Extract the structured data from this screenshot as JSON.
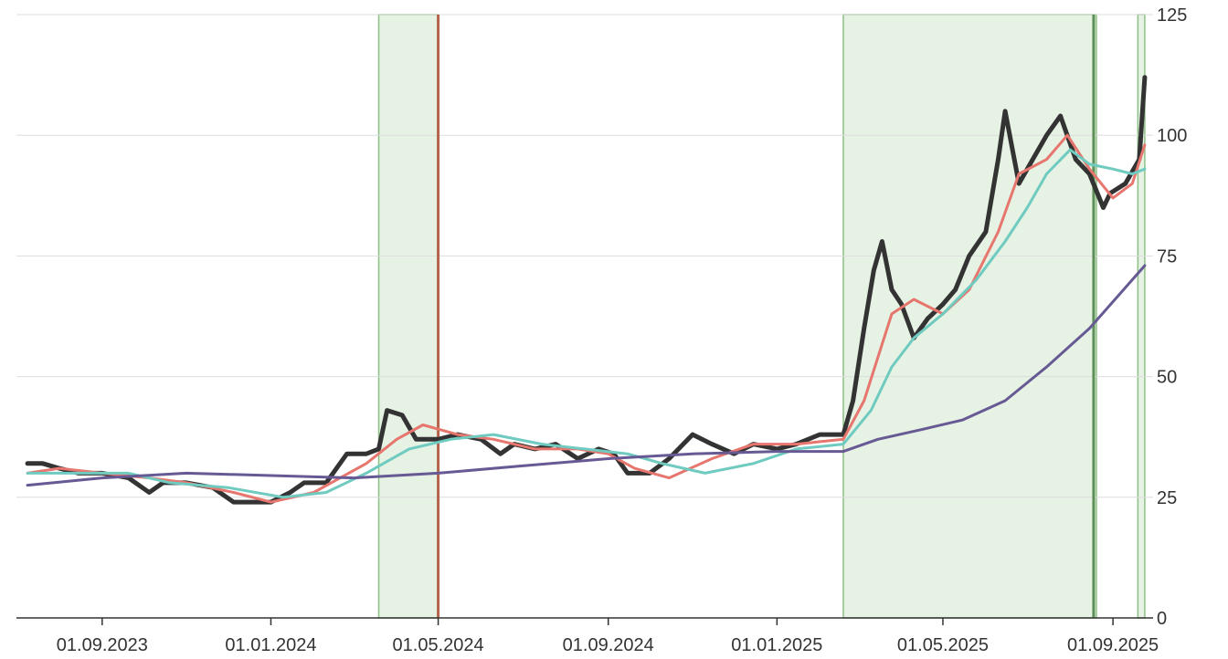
{
  "chart_data": {
    "type": "line",
    "title": "",
    "xlabel": "",
    "ylabel": "",
    "ylim": [
      0,
      125
    ],
    "xlim": [
      "2023-07-01",
      "2025-09-30"
    ],
    "grid": "horizontal",
    "y_axis_side": "right",
    "y_ticks": [
      0,
      25,
      50,
      75,
      100,
      125
    ],
    "x_ticks": [
      {
        "date": "2023-09-01",
        "label": "01.09.2023"
      },
      {
        "date": "2024-01-01",
        "label": "01.01.2024"
      },
      {
        "date": "2024-05-01",
        "label": "01.05.2024"
      },
      {
        "date": "2024-09-01",
        "label": "01.09.2024"
      },
      {
        "date": "2025-01-01",
        "label": "01.01.2025"
      },
      {
        "date": "2025-05-01",
        "label": "01.05.2025"
      },
      {
        "date": "2025-09-01",
        "label": "01.09.2025"
      }
    ],
    "shaded_regions": [
      {
        "start": "2024-03-19",
        "end": "2024-05-01",
        "color": "#e6f2e4",
        "border": "#8cc084"
      },
      {
        "start": "2025-02-18",
        "end": "2025-08-20",
        "color": "#e6f2e4",
        "border": "#8cc084"
      },
      {
        "start": "2025-09-19",
        "end": "2025-09-24",
        "color": "#e6f2e4",
        "border": "#8cc084"
      }
    ],
    "vertical_lines": [
      {
        "date": "2024-05-01",
        "color": "#b5624a"
      },
      {
        "date": "2025-08-18",
        "color": "#5e8f58"
      }
    ],
    "series": [
      {
        "color": "#333333",
        "width": 5,
        "x": [
          "2023-07-09",
          "2023-07-20",
          "2023-08-01",
          "2023-08-15",
          "2023-09-01",
          "2023-09-20",
          "2023-10-05",
          "2023-10-15",
          "2023-11-01",
          "2023-11-20",
          "2023-12-05",
          "2023-12-15",
          "2024-01-01",
          "2024-01-15",
          "2024-01-25",
          "2024-02-10",
          "2024-02-25",
          "2024-03-10",
          "2024-03-19",
          "2024-03-25",
          "2024-04-05",
          "2024-04-15",
          "2024-05-01",
          "2024-05-15",
          "2024-06-01",
          "2024-06-15",
          "2024-06-25",
          "2024-07-10",
          "2024-07-25",
          "2024-08-10",
          "2024-08-25",
          "2024-09-05",
          "2024-09-15",
          "2024-10-01",
          "2024-10-15",
          "2024-11-01",
          "2024-11-15",
          "2024-12-01",
          "2024-12-15",
          "2025-01-01",
          "2025-01-15",
          "2025-02-01",
          "2025-02-18",
          "2025-02-25",
          "2025-03-05",
          "2025-03-12",
          "2025-03-18",
          "2025-03-25",
          "2025-04-01",
          "2025-04-10",
          "2025-04-20",
          "2025-05-01",
          "2025-05-10",
          "2025-05-20",
          "2025-06-01",
          "2025-06-10",
          "2025-06-15",
          "2025-06-25",
          "2025-07-05",
          "2025-07-15",
          "2025-07-25",
          "2025-08-05",
          "2025-08-15",
          "2025-08-25",
          "2025-08-30",
          "2025-09-10",
          "2025-09-20",
          "2025-09-24"
        ],
        "values": [
          32,
          32,
          31,
          30,
          30,
          29,
          26,
          28,
          28,
          27,
          24,
          24,
          24,
          26,
          28,
          28,
          34,
          34,
          35,
          43,
          42,
          37,
          37,
          38,
          37,
          34,
          36,
          35,
          36,
          33,
          35,
          34,
          30,
          30,
          33,
          38,
          36,
          34,
          36,
          35,
          36,
          38,
          38,
          45,
          60,
          72,
          78,
          68,
          65,
          58,
          62,
          65,
          68,
          75,
          80,
          95,
          105,
          90,
          95,
          100,
          104,
          95,
          92,
          85,
          88,
          90,
          95,
          112
        ]
      },
      {
        "color": "#e6766e",
        "width": 3,
        "x": [
          "2023-07-09",
          "2023-08-01",
          "2023-09-01",
          "2023-10-05",
          "2023-11-01",
          "2023-12-05",
          "2024-01-01",
          "2024-02-01",
          "2024-03-10",
          "2024-04-01",
          "2024-04-20",
          "2024-05-15",
          "2024-06-10",
          "2024-07-10",
          "2024-08-10",
          "2024-09-01",
          "2024-09-20",
          "2024-10-15",
          "2024-11-15",
          "2024-12-15",
          "2025-01-15",
          "2025-02-18",
          "2025-03-05",
          "2025-03-25",
          "2025-04-10",
          "2025-05-01",
          "2025-05-20",
          "2025-06-10",
          "2025-06-25",
          "2025-07-15",
          "2025-07-30",
          "2025-08-15",
          "2025-09-01",
          "2025-09-15",
          "2025-09-24"
        ],
        "values": [
          30,
          31,
          30,
          29,
          28,
          26,
          24,
          26,
          32,
          37,
          40,
          38,
          37,
          35,
          35,
          34,
          31,
          29,
          33,
          36,
          36,
          37,
          45,
          63,
          66,
          63,
          68,
          80,
          92,
          95,
          100,
          93,
          87,
          90,
          98
        ]
      },
      {
        "color": "#6fcac0",
        "width": 3,
        "x": [
          "2023-07-09",
          "2023-08-15",
          "2023-09-20",
          "2023-10-20",
          "2023-12-01",
          "2024-01-10",
          "2024-02-10",
          "2024-03-10",
          "2024-04-10",
          "2024-05-10",
          "2024-06-10",
          "2024-07-15",
          "2024-08-15",
          "2024-09-15",
          "2024-10-10",
          "2024-11-10",
          "2024-12-15",
          "2025-01-15",
          "2025-02-18",
          "2025-03-10",
          "2025-03-25",
          "2025-04-10",
          "2025-05-01",
          "2025-05-25",
          "2025-06-15",
          "2025-07-01",
          "2025-07-15",
          "2025-08-01",
          "2025-08-15",
          "2025-09-01",
          "2025-09-15",
          "2025-09-24"
        ],
        "values": [
          30,
          30,
          30,
          28,
          27,
          25,
          26,
          30,
          35,
          37,
          38,
          36,
          35,
          34,
          32,
          30,
          32,
          35,
          36,
          43,
          52,
          58,
          63,
          70,
          78,
          85,
          92,
          97,
          94,
          93,
          92,
          93
        ]
      },
      {
        "color": "#675a94",
        "width": 3,
        "x": [
          "2023-07-09",
          "2023-09-01",
          "2023-11-01",
          "2024-01-01",
          "2024-03-01",
          "2024-05-01",
          "2024-07-01",
          "2024-09-01",
          "2024-11-01",
          "2025-01-01",
          "2025-02-18",
          "2025-03-15",
          "2025-04-15",
          "2025-05-15",
          "2025-06-15",
          "2025-07-15",
          "2025-08-15",
          "2025-09-24"
        ],
        "values": [
          27.5,
          29,
          30,
          29.5,
          29,
          30,
          31.5,
          33,
          34,
          34.5,
          34.5,
          37,
          39,
          41,
          45,
          52,
          60,
          73
        ]
      }
    ]
  }
}
